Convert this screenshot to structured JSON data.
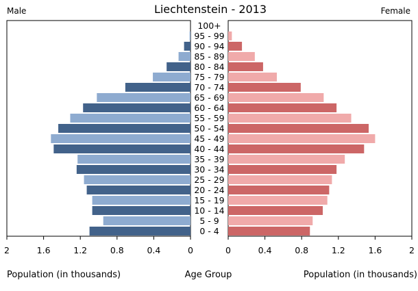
{
  "chart_data": {
    "type": "bar",
    "orientation": "horizontal",
    "title": "Liechtenstein - 2013",
    "left_label": "Male",
    "right_label": "Female",
    "xlabel_left": "Population (in thousands)",
    "xlabel_center": "Age Group",
    "xlabel_right": "Population (in thousands)",
    "xlim": [
      0,
      2
    ],
    "x_ticks": [
      "2",
      "1.6",
      "1.2",
      "0.8",
      "0.4",
      "0"
    ],
    "x_ticks_right": [
      "0",
      "0.4",
      "0.8",
      "1.2",
      "1.6",
      "2"
    ],
    "categories": [
      "100+",
      "95 - 99",
      "90 - 94",
      "85 - 89",
      "80 - 84",
      "75 - 79",
      "70 - 74",
      "65 - 69",
      "60 - 64",
      "55 - 59",
      "50 - 54",
      "45 - 49",
      "40 - 44",
      "35 - 39",
      "30 - 34",
      "25 - 29",
      "20 - 24",
      "15 - 19",
      "10 - 14",
      "5 - 9",
      "0 - 4"
    ],
    "series": [
      {
        "name": "Male",
        "values": [
          0.0,
          0.01,
          0.07,
          0.13,
          0.26,
          0.41,
          0.71,
          1.02,
          1.17,
          1.31,
          1.44,
          1.52,
          1.49,
          1.23,
          1.24,
          1.16,
          1.13,
          1.07,
          1.07,
          0.95,
          1.1
        ],
        "colors": [
          "#42628a",
          "#8eabd0"
        ]
      },
      {
        "name": "Female",
        "values": [
          0.0,
          0.04,
          0.15,
          0.29,
          0.38,
          0.53,
          0.79,
          1.04,
          1.18,
          1.34,
          1.53,
          1.6,
          1.48,
          1.27,
          1.18,
          1.13,
          1.1,
          1.08,
          1.03,
          0.92,
          0.89
        ],
        "colors": [
          "#cc6666",
          "#f0aaaa"
        ]
      }
    ],
    "colors": {
      "male_dark": "#42628a",
      "male_light": "#8eabd0",
      "female_dark": "#cc6666",
      "female_light": "#f0aaaa"
    },
    "grid": false,
    "legend": "none"
  }
}
